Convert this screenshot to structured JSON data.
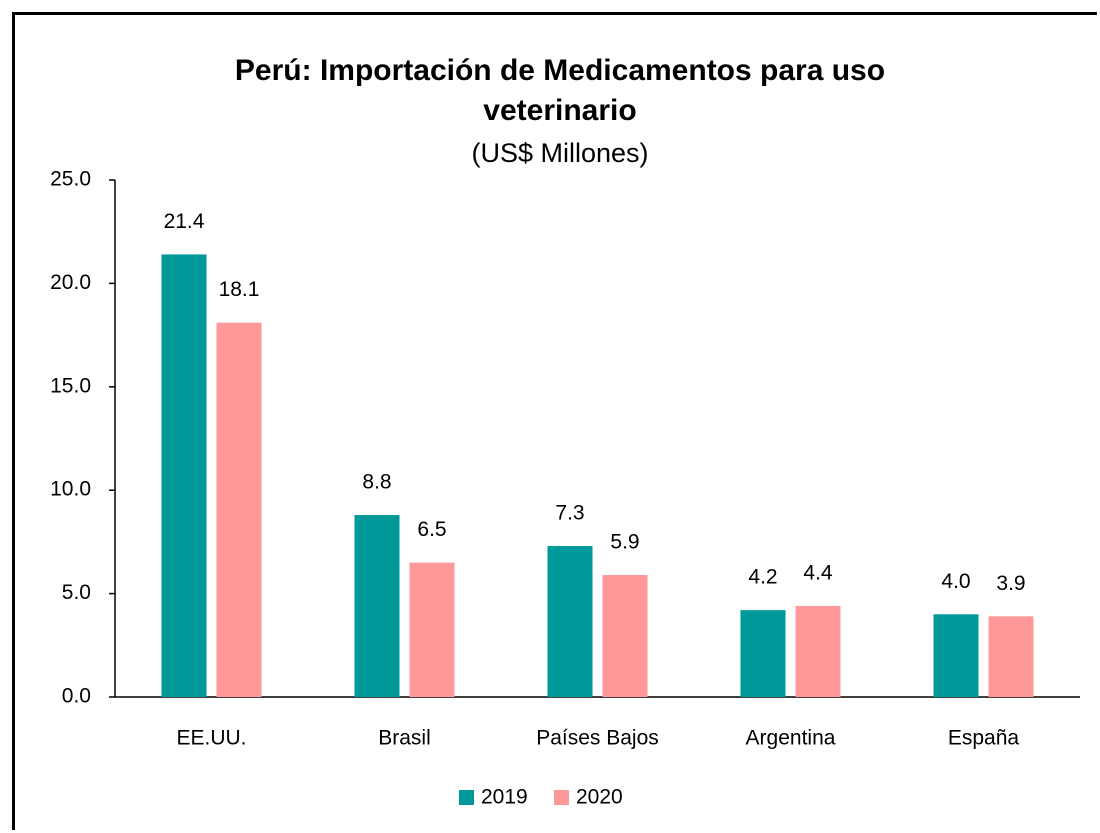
{
  "chart_data": {
    "type": "bar",
    "title": "Perú: Importación de Medicamentos para uso veterinario",
    "subtitle": "(US$ Millones)",
    "categories": [
      "EE.UU.",
      "Brasil",
      "Países Bajos",
      "Argentina",
      "España"
    ],
    "series": [
      {
        "name": "2019",
        "color": "#009999",
        "values": [
          21.4,
          8.8,
          7.3,
          4.2,
          4.0
        ],
        "value_labels": [
          "21.4",
          "8.8",
          "7.3",
          "4.2",
          "4.0"
        ]
      },
      {
        "name": "2020",
        "color": "#ff9999",
        "values": [
          18.1,
          6.5,
          5.9,
          4.4,
          3.9
        ]
      }
    ],
    "ylim": [
      0,
      25
    ],
    "yticks": [
      {
        "value": 0,
        "label": "0.0"
      },
      {
        "value": 5,
        "label": "5.0"
      },
      {
        "value": 10,
        "label": "10.0"
      },
      {
        "value": 15,
        "label": "15.0"
      },
      {
        "value": 20,
        "label": "20.0"
      },
      {
        "value": 25,
        "label": "25.0"
      }
    ],
    "grid": false,
    "legend": "bottom"
  }
}
